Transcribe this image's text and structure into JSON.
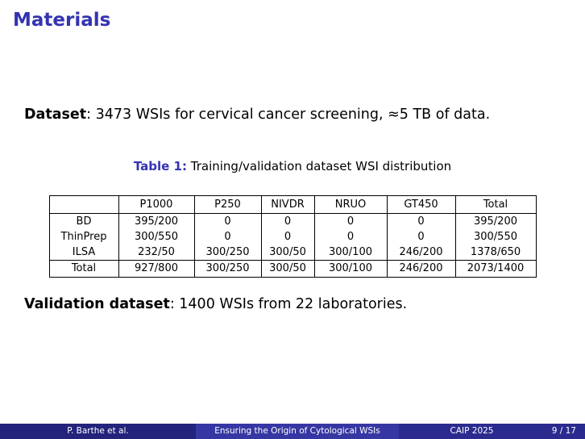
{
  "slide": {
    "title": "Materials",
    "dataset": {
      "label": "Dataset",
      "text": ": 3473 WSIs for cervical cancer screening, ≈5 TB of data."
    },
    "validation": {
      "label": "Validation dataset",
      "text": ": 1400 WSIs from 22 laboratories."
    }
  },
  "table": {
    "caption_label": "Table 1:",
    "caption_text": " Training/validation dataset WSI distribution",
    "columns": [
      "",
      "P1000",
      "P250",
      "NIVDR",
      "NRUO",
      "GT450",
      "Total"
    ],
    "rows": [
      {
        "label": "BD",
        "values": [
          "395/200",
          "0",
          "0",
          "0",
          "0",
          "395/200"
        ],
        "is_total": false
      },
      {
        "label": "ThinPrep",
        "values": [
          "300/550",
          "0",
          "0",
          "0",
          "0",
          "300/550"
        ],
        "is_total": false
      },
      {
        "label": "ILSA",
        "values": [
          "232/50",
          "300/250",
          "300/50",
          "300/100",
          "246/200",
          "1378/650"
        ],
        "is_total": false
      },
      {
        "label": "Total",
        "values": [
          "927/800",
          "300/250",
          "300/50",
          "300/100",
          "246/200",
          "2073/1400"
        ],
        "is_total": true
      }
    ]
  },
  "footer": {
    "author": "P. Barthe et al.",
    "talk_title": "Ensuring the Origin of Cytological WSIs",
    "conference": "CAIP 2025",
    "page": "9 / 17"
  },
  "colors": {
    "structure_blue": "#3333B2",
    "footer_left_bg": "#23237C",
    "footer_middle_bg": "#3737A3",
    "footer_right_bg": "#2B2B8F"
  }
}
